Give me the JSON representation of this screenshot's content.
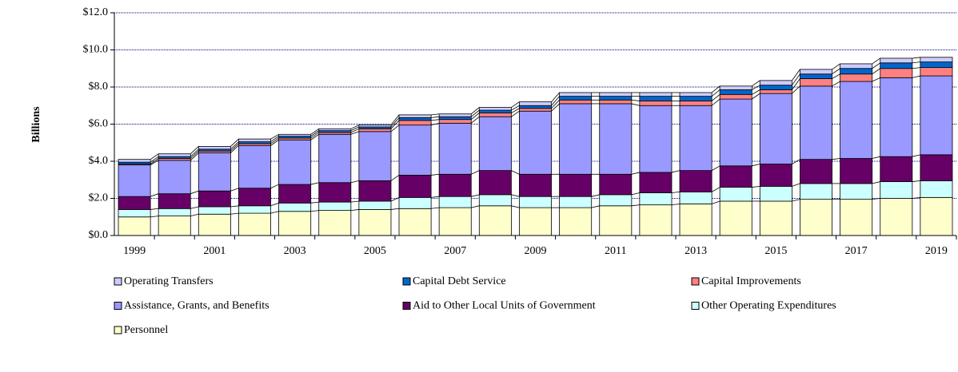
{
  "chart_data": {
    "type": "stacked-bar",
    "y_label": "Billions",
    "categories": [
      "1999",
      null,
      "2001",
      null,
      "2003",
      null,
      "2005",
      null,
      "2007",
      null,
      "2009",
      null,
      "2011",
      null,
      "2013",
      null,
      "2015",
      null,
      "2017",
      null,
      "2019"
    ],
    "ylim": [
      0,
      12
    ],
    "yticks": [
      {
        "value": 0,
        "label": "$0.0"
      },
      {
        "value": 2,
        "label": "$2.0"
      },
      {
        "value": 4,
        "label": "$4.0"
      },
      {
        "value": 6,
        "label": "$6.0"
      },
      {
        "value": 8,
        "label": "$8.0"
      },
      {
        "value": 10,
        "label": "$10.0"
      },
      {
        "value": 12,
        "label": "$12.0"
      }
    ],
    "grid": true,
    "legend": "bottom",
    "series": [
      {
        "name": "Personnel",
        "color": "#ffffcc",
        "values": [
          1.0,
          1.05,
          1.15,
          1.2,
          1.3,
          1.35,
          1.4,
          1.45,
          1.5,
          1.6,
          1.5,
          1.5,
          1.6,
          1.65,
          1.7,
          1.85,
          1.85,
          1.95,
          1.95,
          2.0,
          2.05
        ]
      },
      {
        "name": "Other Operating Expenditures",
        "color": "#ccffff",
        "values": [
          0.4,
          0.4,
          0.4,
          0.4,
          0.45,
          0.45,
          0.45,
          0.6,
          0.6,
          0.6,
          0.6,
          0.6,
          0.6,
          0.65,
          0.65,
          0.75,
          0.8,
          0.85,
          0.85,
          0.9,
          0.9
        ]
      },
      {
        "name": "Aid to Other Local Units of Government",
        "color": "#660066",
        "values": [
          0.7,
          0.8,
          0.85,
          0.95,
          1.0,
          1.05,
          1.1,
          1.2,
          1.2,
          1.3,
          1.2,
          1.2,
          1.1,
          1.1,
          1.15,
          1.15,
          1.2,
          1.3,
          1.35,
          1.35,
          1.4
        ]
      },
      {
        "name": "Assistance, Grants, and Benefits",
        "color": "#9999ff",
        "values": [
          1.7,
          1.8,
          2.05,
          2.3,
          2.4,
          2.6,
          2.65,
          2.7,
          2.75,
          2.9,
          3.4,
          3.8,
          3.8,
          3.6,
          3.5,
          3.6,
          3.8,
          3.95,
          4.15,
          4.25,
          4.25
        ]
      },
      {
        "name": "Capital Improvements",
        "color": "#ff8080",
        "values": [
          0.05,
          0.1,
          0.1,
          0.1,
          0.1,
          0.1,
          0.15,
          0.25,
          0.2,
          0.2,
          0.15,
          0.2,
          0.2,
          0.25,
          0.25,
          0.25,
          0.2,
          0.4,
          0.4,
          0.5,
          0.45
        ]
      },
      {
        "name": "Capital Debt Service",
        "color": "#0066cc",
        "values": [
          0.1,
          0.1,
          0.1,
          0.1,
          0.1,
          0.1,
          0.1,
          0.15,
          0.15,
          0.15,
          0.15,
          0.2,
          0.2,
          0.25,
          0.25,
          0.25,
          0.25,
          0.25,
          0.3,
          0.3,
          0.3
        ]
      },
      {
        "name": "Operating Transfers",
        "color": "#ccccff",
        "values": [
          0.15,
          0.15,
          0.15,
          0.15,
          0.1,
          0.1,
          0.1,
          0.15,
          0.15,
          0.15,
          0.2,
          0.2,
          0.2,
          0.2,
          0.2,
          0.2,
          0.25,
          0.25,
          0.25,
          0.25,
          0.25
        ]
      }
    ]
  }
}
